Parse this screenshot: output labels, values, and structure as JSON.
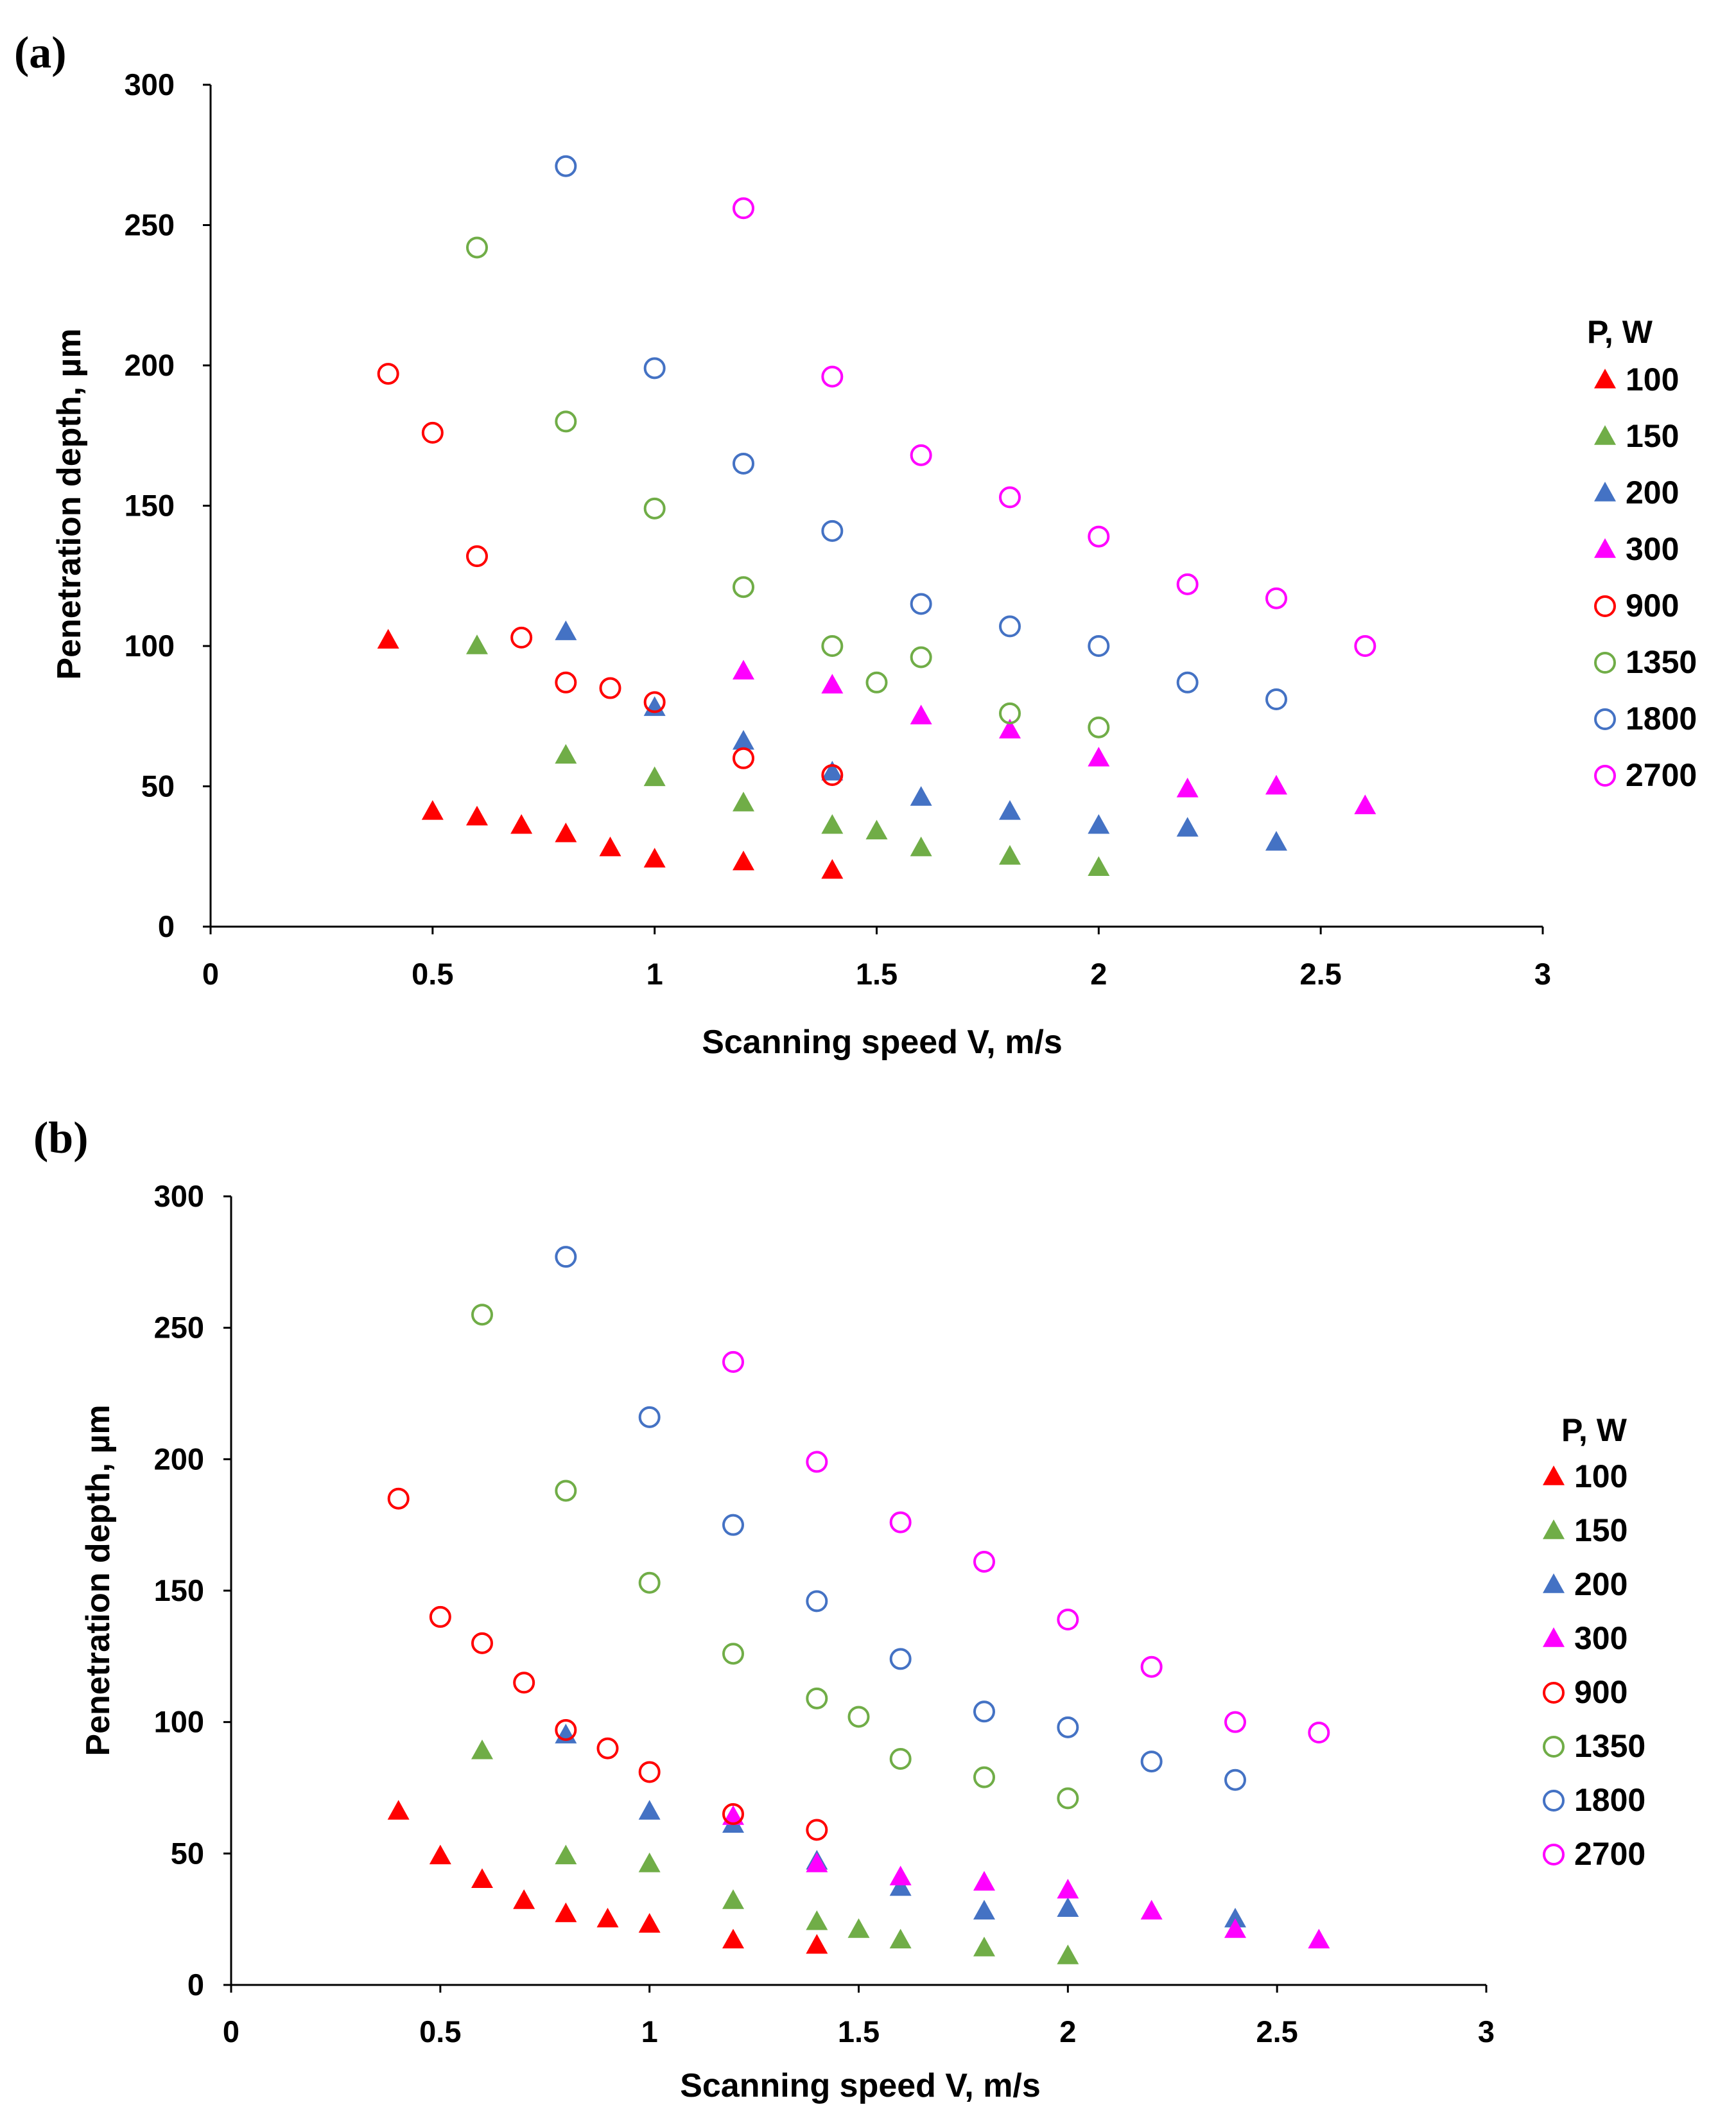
{
  "chart_data": [
    {
      "type": "scatter",
      "panel_label": "(a)",
      "xlabel": "Scanning speed V, m/s",
      "ylabel": "Penetration depth, µm",
      "xlim": [
        0,
        3
      ],
      "ylim": [
        0,
        300
      ],
      "xticks": [
        "0",
        "0.5",
        "1",
        "1.5",
        "2",
        "2.5",
        "3"
      ],
      "yticks": [
        "0",
        "50",
        "100",
        "150",
        "200",
        "250",
        "300"
      ],
      "grid": false,
      "legend_title": "P, W",
      "legend_position": "right",
      "series": [
        {
          "name": "100",
          "marker": "triangle",
          "color": "#ff0000",
          "x": [
            0.4,
            0.5,
            0.6,
            0.7,
            0.8,
            0.9,
            1.0,
            1.2,
            1.4
          ],
          "y": [
            102,
            41,
            39,
            36,
            33,
            28,
            24,
            23,
            20
          ]
        },
        {
          "name": "150",
          "marker": "triangle",
          "color": "#70ad47",
          "x": [
            0.6,
            0.8,
            1.0,
            1.2,
            1.4,
            1.5,
            1.6,
            1.8,
            2.0
          ],
          "y": [
            100,
            61,
            53,
            44,
            36,
            34,
            28,
            25,
            21
          ]
        },
        {
          "name": "200",
          "marker": "triangle",
          "color": "#4472c4",
          "x": [
            0.8,
            1.0,
            1.2,
            1.4,
            1.6,
            1.8,
            2.0,
            2.2,
            2.4
          ],
          "y": [
            105,
            78,
            66,
            55,
            46,
            41,
            36,
            35,
            30
          ]
        },
        {
          "name": "300",
          "marker": "triangle",
          "color": "#ff00ff",
          "x": [
            1.2,
            1.4,
            1.6,
            1.8,
            2.0,
            2.2,
            2.4,
            2.6
          ],
          "y": [
            91,
            86,
            75,
            70,
            60,
            49,
            50,
            43
          ]
        },
        {
          "name": "900",
          "marker": "circle",
          "color": "#ff0000",
          "x": [
            0.4,
            0.5,
            0.6,
            0.7,
            0.8,
            0.9,
            1.0,
            1.2,
            1.4
          ],
          "y": [
            197,
            176,
            132,
            103,
            87,
            85,
            80,
            60,
            54
          ]
        },
        {
          "name": "1350",
          "marker": "circle",
          "color": "#70ad47",
          "x": [
            0.6,
            0.8,
            1.0,
            1.2,
            1.4,
            1.5,
            1.6,
            1.8,
            2.0
          ],
          "y": [
            242,
            180,
            149,
            121,
            100,
            87,
            96,
            76,
            71
          ]
        },
        {
          "name": "1800",
          "marker": "circle",
          "color": "#4472c4",
          "x": [
            0.8,
            1.0,
            1.2,
            1.4,
            1.6,
            1.8,
            2.0,
            2.2,
            2.4
          ],
          "y": [
            271,
            199,
            165,
            141,
            115,
            107,
            100,
            87,
            81
          ]
        },
        {
          "name": "2700",
          "marker": "circle",
          "color": "#ff00ff",
          "x": [
            1.2,
            1.4,
            1.6,
            1.8,
            2.0,
            2.2,
            2.4,
            2.6
          ],
          "y": [
            256,
            196,
            168,
            153,
            139,
            122,
            117,
            100
          ]
        }
      ]
    },
    {
      "type": "scatter",
      "panel_label": "(b)",
      "xlabel": "Scanning speed V, m/s",
      "ylabel": "Penetration depth, µm",
      "xlim": [
        0,
        3
      ],
      "ylim": [
        0,
        300
      ],
      "xticks": [
        "0",
        "0.5",
        "1",
        "1.5",
        "2",
        "2.5",
        "3"
      ],
      "yticks": [
        "0",
        "50",
        "100",
        "150",
        "200",
        "250",
        "300"
      ],
      "grid": false,
      "legend_title": "P, W",
      "legend_position": "right",
      "series": [
        {
          "name": "100",
          "marker": "triangle",
          "color": "#ff0000",
          "x": [
            0.4,
            0.5,
            0.6,
            0.7,
            0.8,
            0.9,
            1.0,
            1.2,
            1.4
          ],
          "y": [
            66,
            49,
            40,
            32,
            27,
            25,
            23,
            17,
            15
          ]
        },
        {
          "name": "150",
          "marker": "triangle",
          "color": "#70ad47",
          "x": [
            0.6,
            0.8,
            1.0,
            1.2,
            1.4,
            1.5,
            1.6,
            1.8,
            2.0
          ],
          "y": [
            89,
            49,
            46,
            32,
            24,
            21,
            17,
            14,
            11
          ]
        },
        {
          "name": "200",
          "marker": "triangle",
          "color": "#4472c4",
          "x": [
            0.8,
            1.0,
            1.2,
            1.4,
            1.6,
            1.8,
            2.0,
            2.4
          ],
          "y": [
            95,
            66,
            61,
            47,
            37,
            28,
            29,
            25
          ]
        },
        {
          "name": "300",
          "marker": "triangle",
          "color": "#ff00ff",
          "x": [
            1.2,
            1.4,
            1.6,
            1.8,
            2.0,
            2.2,
            2.4,
            2.6
          ],
          "y": [
            64,
            46,
            41,
            39,
            36,
            28,
            21,
            17
          ]
        },
        {
          "name": "900",
          "marker": "circle",
          "color": "#ff0000",
          "x": [
            0.4,
            0.5,
            0.6,
            0.7,
            0.8,
            0.9,
            1.0,
            1.2,
            1.4
          ],
          "y": [
            185,
            140,
            130,
            115,
            97,
            90,
            81,
            65,
            59
          ]
        },
        {
          "name": "1350",
          "marker": "circle",
          "color": "#70ad47",
          "x": [
            0.6,
            0.8,
            1.0,
            1.2,
            1.4,
            1.5,
            1.6,
            1.8,
            2.0
          ],
          "y": [
            255,
            188,
            153,
            126,
            109,
            102,
            86,
            79,
            71
          ]
        },
        {
          "name": "1800",
          "marker": "circle",
          "color": "#4472c4",
          "x": [
            0.8,
            1.0,
            1.2,
            1.4,
            1.6,
            1.8,
            2.0,
            2.2,
            2.4
          ],
          "y": [
            277,
            216,
            175,
            146,
            124,
            104,
            98,
            85,
            78
          ]
        },
        {
          "name": "2700",
          "marker": "circle",
          "color": "#ff00ff",
          "x": [
            1.2,
            1.4,
            1.6,
            1.8,
            2.0,
            2.2,
            2.4,
            2.6
          ],
          "y": [
            237,
            199,
            176,
            161,
            139,
            121,
            100,
            96
          ]
        }
      ]
    }
  ]
}
